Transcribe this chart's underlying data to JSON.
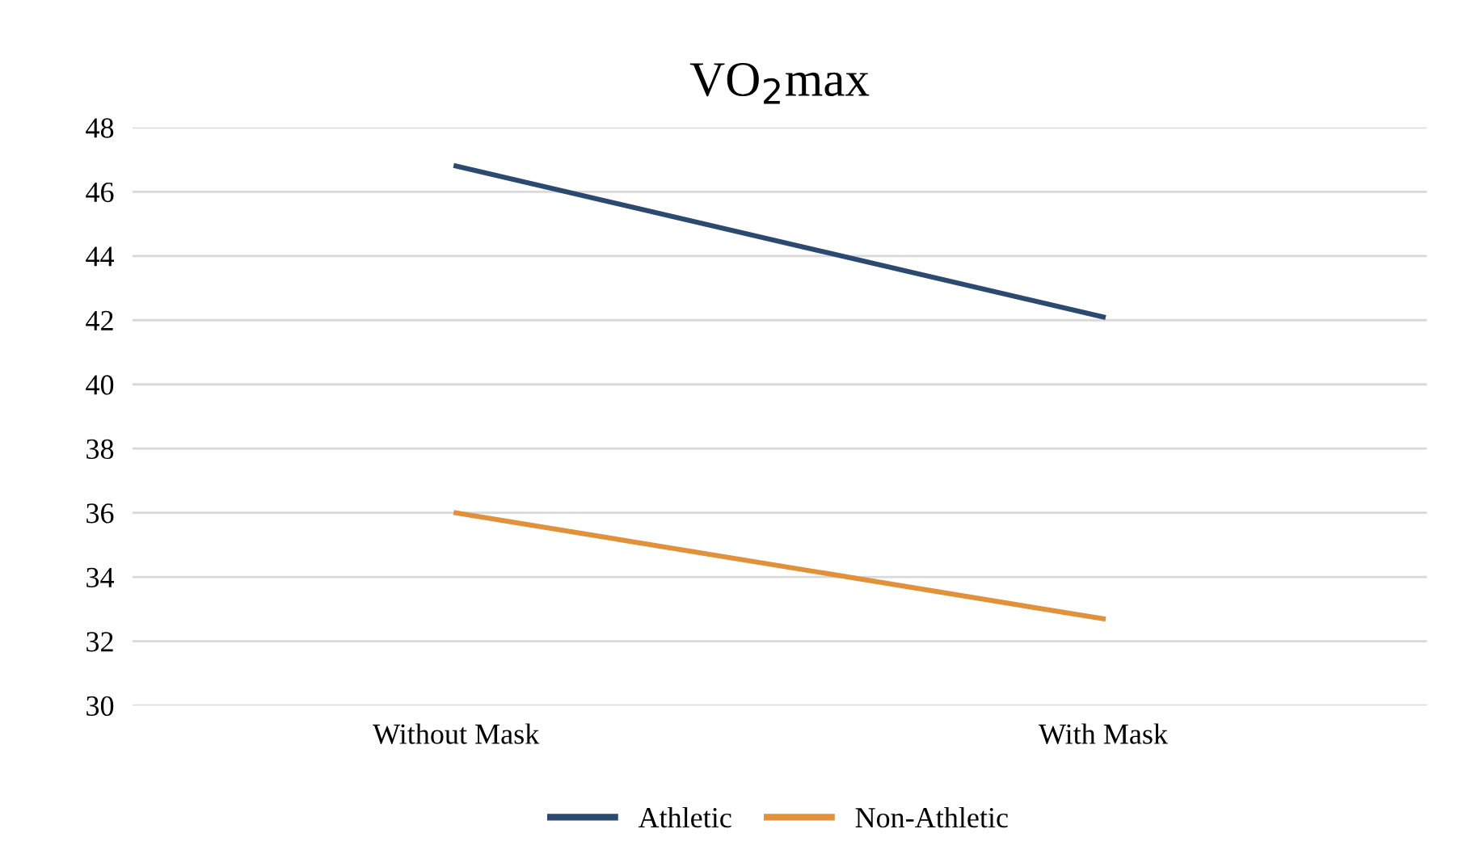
{
  "chart_data": {
    "type": "line",
    "title": "VO$_{2}$max",
    "categories": [
      "Without Mask",
      "With Mask"
    ],
    "series": [
      {
        "name": "Athletic",
        "color": "#2c4a70",
        "values": [
          46.8,
          42.1
        ]
      },
      {
        "name": "Non-Athletic",
        "color": "#e0913a",
        "values": [
          36.0,
          32.7
        ]
      }
    ],
    "ylim": [
      30,
      48
    ],
    "yticks": [
      30,
      32,
      34,
      36,
      38,
      40,
      42,
      44,
      46,
      48
    ],
    "grid": "y",
    "legend": "bottom",
    "marker": "none",
    "line_style": "solid"
  }
}
